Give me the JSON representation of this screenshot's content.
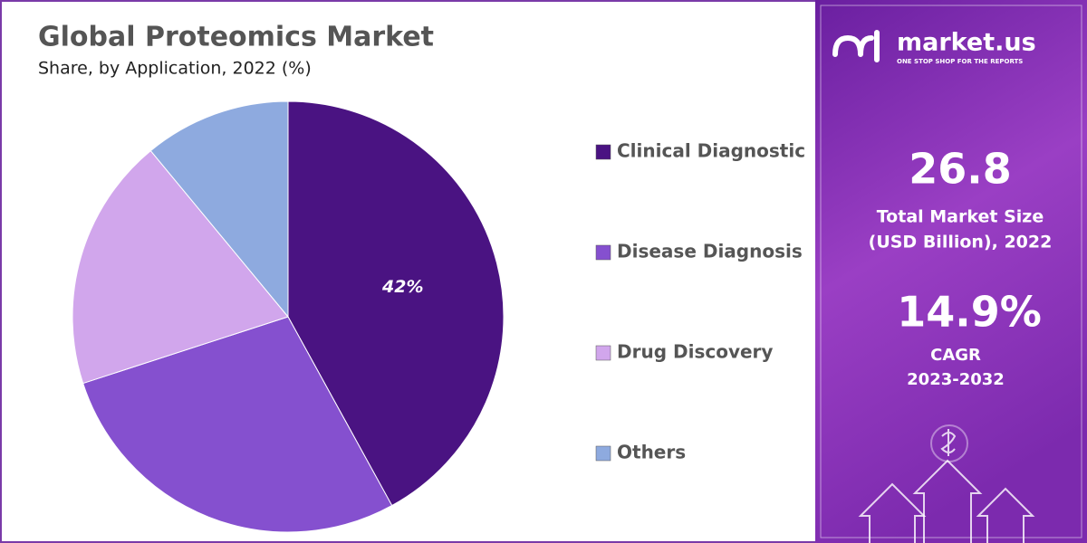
{
  "chart_data": {
    "type": "pie",
    "title": "Global Proteomics Market",
    "subtitle": "Share, by Application, 2022 (%)",
    "categories": [
      "Clinical Diagnostic",
      "Disease Diagnosis",
      "Drug Discovery",
      "Others"
    ],
    "values": [
      42,
      28,
      19,
      11
    ],
    "value_labels": [
      "42%",
      null,
      null,
      null
    ],
    "colors": [
      "#4a1382",
      "#8550cf",
      "#d1a6ec",
      "#8eaadf"
    ]
  },
  "side_panel": {
    "brand": "market.us",
    "tagline": "ONE STOP SHOP FOR THE REPORTS",
    "market_size": "26.8",
    "market_size_label_1": "Total Market Size",
    "market_size_label_2": "(USD Billion), 2022",
    "cagr": "14.9%",
    "cagr_label": "CAGR",
    "cagr_period": "2023-2032"
  }
}
